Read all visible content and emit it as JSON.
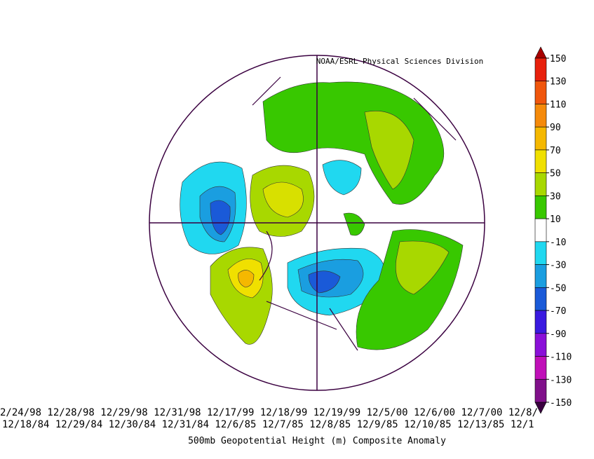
{
  "credit": "NOAA/ESRL Physical Sciences Division",
  "dates": {
    "line1": "2/24/98 12/28/98 12/29/98 12/31/98 12/17/99 12/18/99 12/19/99 12/5/00 12/6/00 12/7/00 12/8/",
    "line2": "12/18/84 12/29/84 12/30/84 12/31/84 12/6/85 12/7/85 12/8/85 12/9/85 12/10/85 12/13/85 12/1"
  },
  "title": "500mb Geopotential Height (m) Composite Anomaly",
  "colorbar": {
    "ticks": [
      150,
      130,
      110,
      90,
      70,
      50,
      30,
      10,
      -10,
      -30,
      -50,
      -70,
      -90,
      -110,
      -130,
      -150
    ],
    "colors": [
      "#e8200c",
      "#f0560c",
      "#f58a0a",
      "#f5b800",
      "#f0e000",
      "#a8d800",
      "#38c800",
      "#ffffff",
      "#20d8f0",
      "#1a9ee0",
      "#1a5ad8",
      "#3a1ae0",
      "#8a10d8",
      "#c010b8",
      "#80108a"
    ],
    "over": "#a80000",
    "under": "#3a0040"
  }
}
